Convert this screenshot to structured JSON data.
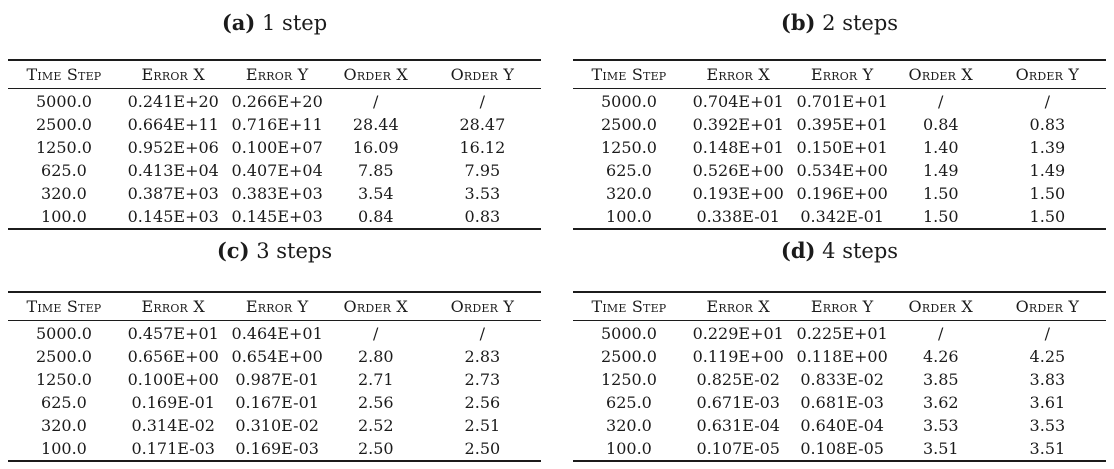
{
  "page": {
    "background_color": "#ffffff",
    "text_color": "#1b1b1b"
  },
  "columns": [
    "Time Step",
    "Error X",
    "Error Y",
    "Order X",
    "Order Y"
  ],
  "tables": [
    {
      "caption_label": "(a)",
      "caption_text": "1 step",
      "rows": [
        [
          "5000.0",
          "0.241E+20",
          "0.266E+20",
          "/",
          "/"
        ],
        [
          "2500.0",
          "0.664E+11",
          "0.716E+11",
          "28.44",
          "28.47"
        ],
        [
          "1250.0",
          "0.952E+06",
          "0.100E+07",
          "16.09",
          "16.12"
        ],
        [
          "625.0",
          "0.413E+04",
          "0.407E+04",
          "7.85",
          "7.95"
        ],
        [
          "320.0",
          "0.387E+03",
          "0.383E+03",
          "3.54",
          "3.53"
        ],
        [
          "100.0",
          "0.145E+03",
          "0.145E+03",
          "0.84",
          "0.83"
        ]
      ]
    },
    {
      "caption_label": "(b)",
      "caption_text": "2 steps",
      "rows": [
        [
          "5000.0",
          "0.704E+01",
          "0.701E+01",
          "/",
          "/"
        ],
        [
          "2500.0",
          "0.392E+01",
          "0.395E+01",
          "0.84",
          "0.83"
        ],
        [
          "1250.0",
          "0.148E+01",
          "0.150E+01",
          "1.40",
          "1.39"
        ],
        [
          "625.0",
          "0.526E+00",
          "0.534E+00",
          "1.49",
          "1.49"
        ],
        [
          "320.0",
          "0.193E+00",
          "0.196E+00",
          "1.50",
          "1.50"
        ],
        [
          "100.0",
          "0.338E-01",
          "0.342E-01",
          "1.50",
          "1.50"
        ]
      ]
    },
    {
      "caption_label": "(c)",
      "caption_text": "3 steps",
      "rows": [
        [
          "5000.0",
          "0.457E+01",
          "0.464E+01",
          "/",
          "/"
        ],
        [
          "2500.0",
          "0.656E+00",
          "0.654E+00",
          "2.80",
          "2.83"
        ],
        [
          "1250.0",
          "0.100E+00",
          "0.987E-01",
          "2.71",
          "2.73"
        ],
        [
          "625.0",
          "0.169E-01",
          "0.167E-01",
          "2.56",
          "2.56"
        ],
        [
          "320.0",
          "0.314E-02",
          "0.310E-02",
          "2.52",
          "2.51"
        ],
        [
          "100.0",
          "0.171E-03",
          "0.169E-03",
          "2.50",
          "2.50"
        ]
      ]
    },
    {
      "caption_label": "(d)",
      "caption_text": "4 steps",
      "rows": [
        [
          "5000.0",
          "0.229E+01",
          "0.225E+01",
          "/",
          "/"
        ],
        [
          "2500.0",
          "0.119E+00",
          "0.118E+00",
          "4.26",
          "4.25"
        ],
        [
          "1250.0",
          "0.825E-02",
          "0.833E-02",
          "3.85",
          "3.83"
        ],
        [
          "625.0",
          "0.671E-03",
          "0.681E-03",
          "3.62",
          "3.61"
        ],
        [
          "320.0",
          "0.631E-04",
          "0.640E-04",
          "3.53",
          "3.53"
        ],
        [
          "100.0",
          "0.107E-05",
          "0.108E-05",
          "3.51",
          "3.51"
        ]
      ]
    }
  ]
}
